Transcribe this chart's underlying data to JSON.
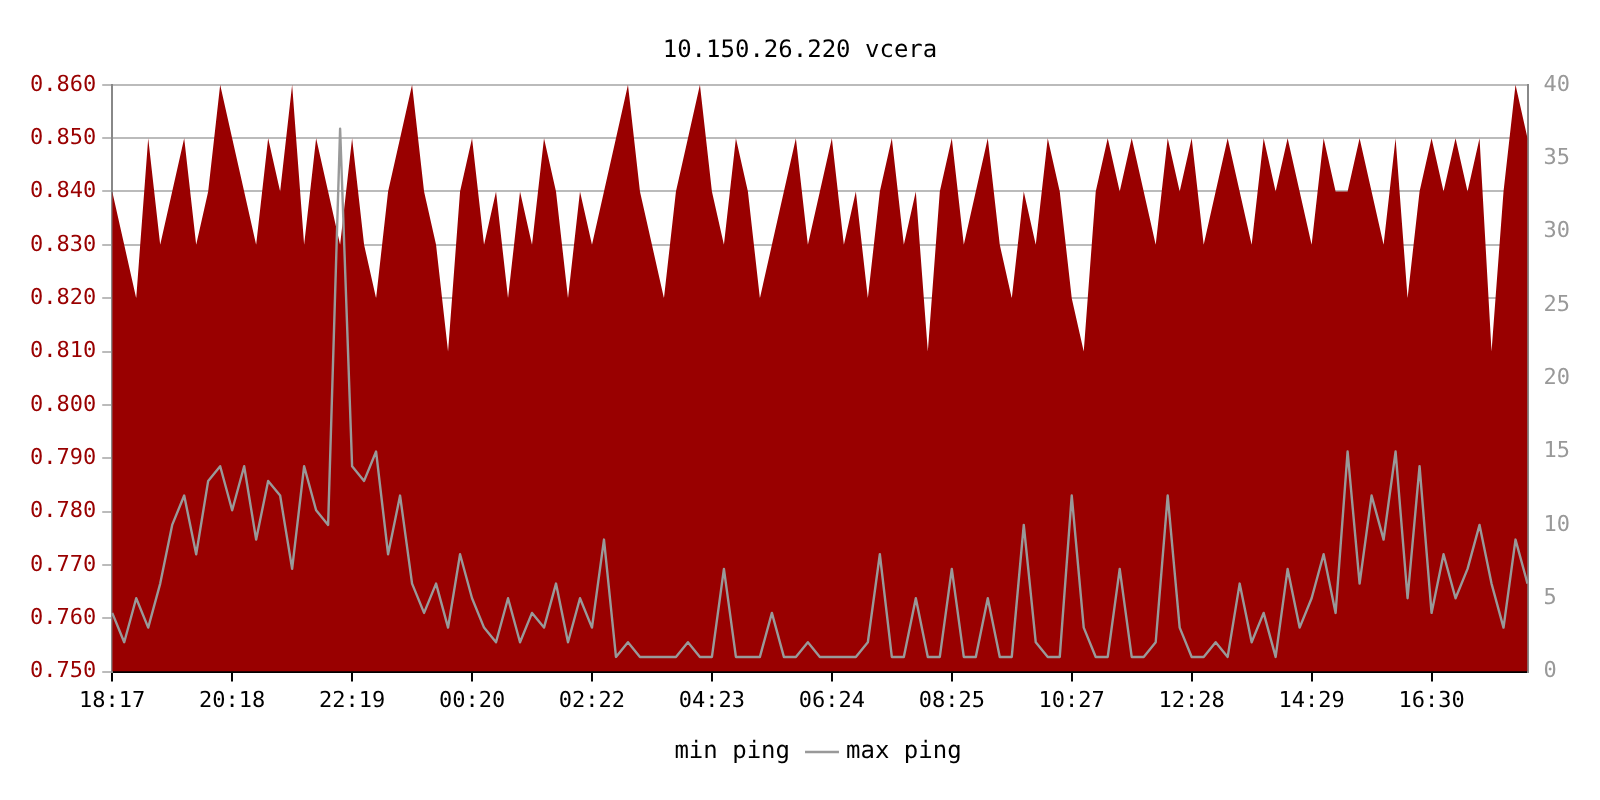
{
  "chart_data": {
    "type": "line",
    "title": "10.150.26.220 vcera",
    "categories": [
      "18:17",
      null,
      null,
      null,
      null,
      null,
      null,
      null,
      null,
      null,
      "20:18",
      null,
      null,
      null,
      null,
      null,
      null,
      null,
      null,
      null,
      "22:19",
      null,
      null,
      null,
      null,
      null,
      null,
      null,
      null,
      null,
      "00:20",
      null,
      null,
      null,
      null,
      null,
      null,
      null,
      null,
      null,
      "02:22",
      null,
      null,
      null,
      null,
      null,
      null,
      null,
      null,
      null,
      "04:23",
      null,
      null,
      null,
      null,
      null,
      null,
      null,
      null,
      null,
      "06:24",
      null,
      null,
      null,
      null,
      null,
      null,
      null,
      null,
      null,
      "08:25",
      null,
      null,
      null,
      null,
      null,
      null,
      null,
      null,
      null,
      "10:27",
      null,
      null,
      null,
      null,
      null,
      null,
      null,
      null,
      null,
      "12:28",
      null,
      null,
      null,
      null,
      null,
      null,
      null,
      null,
      null,
      "14:29",
      null,
      null,
      null,
      null,
      null,
      null,
      null,
      null,
      null,
      "16:30",
      null,
      null,
      null,
      null,
      null,
      null,
      null,
      null
    ],
    "series": [
      {
        "name": "min ping",
        "type": "area",
        "color": "#990000",
        "values": [
          0.84,
          0.83,
          0.82,
          0.85,
          0.83,
          0.84,
          0.85,
          0.83,
          0.84,
          0.86,
          0.85,
          0.84,
          0.83,
          0.85,
          0.84,
          0.86,
          0.83,
          0.85,
          0.84,
          0.83,
          0.85,
          0.83,
          0.82,
          0.84,
          0.85,
          0.86,
          0.84,
          0.83,
          0.81,
          0.84,
          0.85,
          0.83,
          0.84,
          0.82,
          0.84,
          0.83,
          0.85,
          0.84,
          0.82,
          0.84,
          0.83,
          0.84,
          0.85,
          0.86,
          0.84,
          0.83,
          0.82,
          0.84,
          0.85,
          0.86,
          0.84,
          0.83,
          0.85,
          0.84,
          0.82,
          0.83,
          0.84,
          0.85,
          0.83,
          0.84,
          0.85,
          0.83,
          0.84,
          0.82,
          0.84,
          0.85,
          0.83,
          0.84,
          0.81,
          0.84,
          0.85,
          0.83,
          0.84,
          0.85,
          0.83,
          0.82,
          0.84,
          0.83,
          0.85,
          0.84,
          0.82,
          0.81,
          0.84,
          0.85,
          0.84,
          0.85,
          0.84,
          0.83,
          0.85,
          0.84,
          0.85,
          0.83,
          0.84,
          0.85,
          0.84,
          0.83,
          0.85,
          0.84,
          0.85,
          0.84,
          0.83,
          0.85,
          0.84,
          0.84,
          0.85,
          0.84,
          0.83,
          0.85,
          0.82,
          0.84,
          0.85,
          0.84,
          0.85,
          0.84,
          0.85,
          0.81,
          0.84,
          0.86,
          0.85
        ]
      },
      {
        "name": "max ping",
        "type": "line",
        "axis": "y2",
        "color": "#999999",
        "values": [
          4,
          2,
          5,
          3,
          6,
          10,
          12,
          8,
          13,
          14,
          11,
          14,
          9,
          13,
          12,
          7,
          14,
          11,
          10,
          37,
          14,
          13,
          15,
          8,
          12,
          6,
          4,
          6,
          3,
          8,
          5,
          3,
          2,
          5,
          2,
          4,
          3,
          6,
          2,
          5,
          3,
          9,
          1,
          2,
          1,
          1,
          1,
          1,
          2,
          1,
          1,
          7,
          1,
          1,
          1,
          4,
          1,
          1,
          2,
          1,
          1,
          1,
          1,
          2,
          8,
          1,
          1,
          5,
          1,
          1,
          7,
          1,
          1,
          5,
          1,
          1,
          10,
          2,
          1,
          1,
          12,
          3,
          1,
          1,
          7,
          1,
          1,
          2,
          12,
          3,
          1,
          1,
          2,
          1,
          6,
          2,
          4,
          1,
          7,
          3,
          5,
          8,
          4,
          15,
          6,
          12,
          9,
          15,
          5,
          14,
          4,
          8,
          5,
          7,
          10,
          6,
          3,
          9,
          6
        ]
      }
    ],
    "ylim": [
      0.75,
      0.86
    ],
    "yticks": [
      {
        "value": 0.75,
        "label": "0.750"
      },
      {
        "value": 0.76,
        "label": "0.760"
      },
      {
        "value": 0.77,
        "label": "0.770"
      },
      {
        "value": 0.78,
        "label": "0.780"
      },
      {
        "value": 0.79,
        "label": "0.790"
      },
      {
        "value": 0.8,
        "label": "0.800"
      },
      {
        "value": 0.81,
        "label": "0.810"
      },
      {
        "value": 0.82,
        "label": "0.820"
      },
      {
        "value": 0.83,
        "label": "0.830"
      },
      {
        "value": 0.84,
        "label": "0.840"
      },
      {
        "value": 0.85,
        "label": "0.850"
      },
      {
        "value": 0.86,
        "label": "0.860"
      }
    ],
    "y2lim": [
      0,
      40
    ],
    "y2ticks": [
      0,
      5,
      10,
      15,
      20,
      25,
      30,
      35,
      40
    ],
    "grid": "y",
    "legend": "bottom",
    "marker": "none"
  }
}
